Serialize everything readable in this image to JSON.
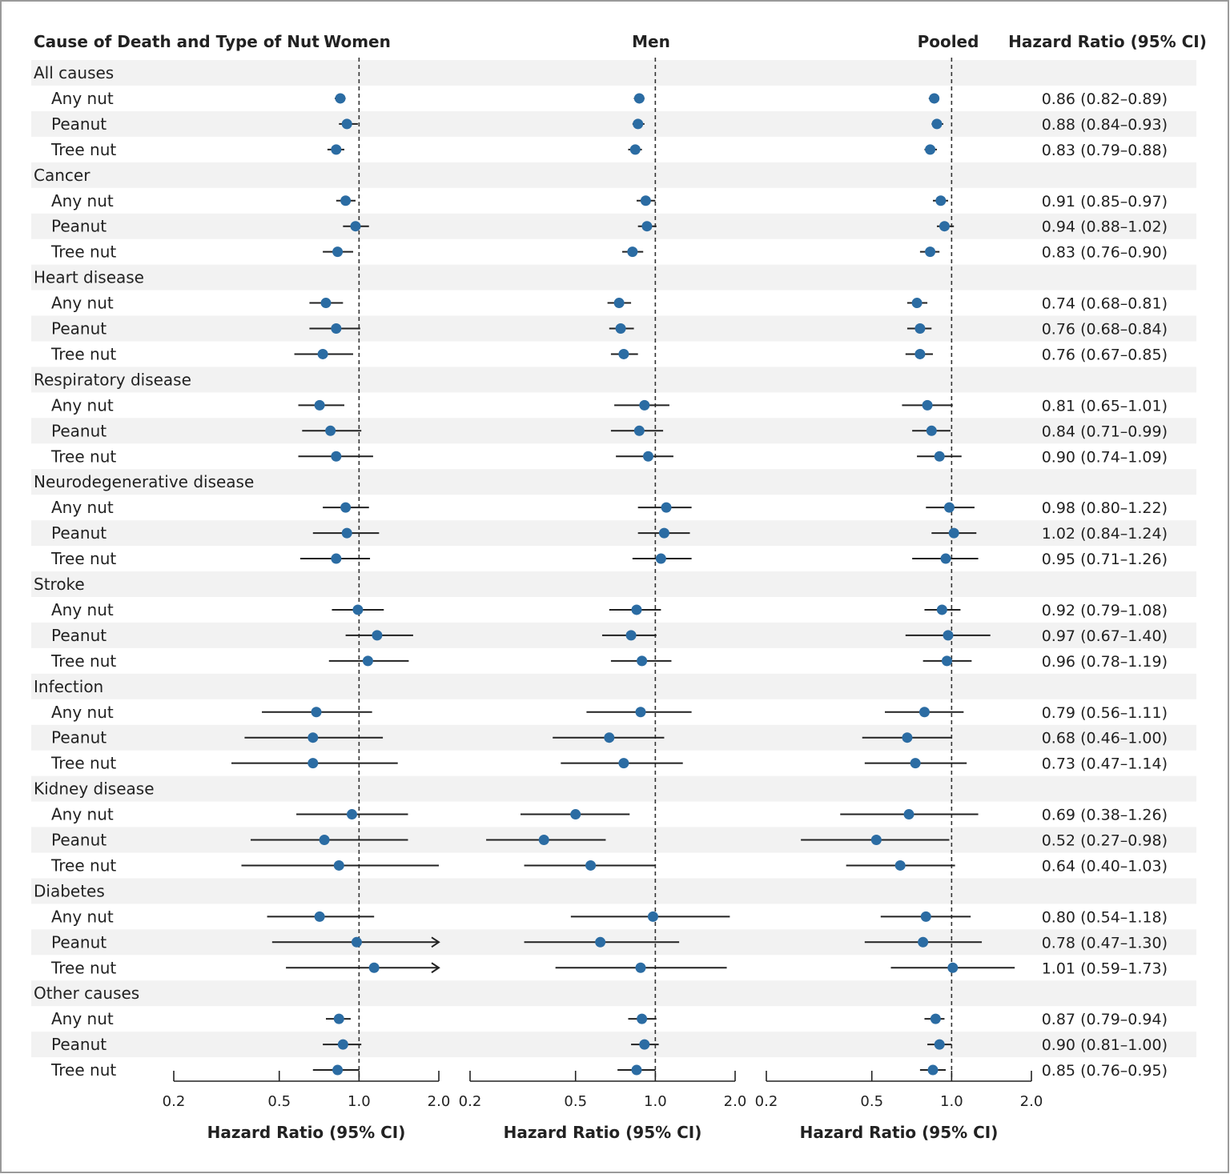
{
  "chart_data": {
    "type": "forest",
    "headers": {
      "category": "Cause of Death and Type of Nut",
      "women": "Women",
      "men": "Men",
      "pooled": "Pooled",
      "hr": "Hazard Ratio (95% CI)"
    },
    "panels": [
      {
        "key": "women",
        "xlabel": "Hazard Ratio (95% CI)"
      },
      {
        "key": "men",
        "xlabel": "Hazard Ratio (95% CI)"
      },
      {
        "key": "pooled",
        "xlabel": "Hazard Ratio (95% CI)"
      }
    ],
    "x_scale": "log",
    "xlim": [
      0.2,
      2.0
    ],
    "ticks": [
      0.2,
      0.5,
      1.0,
      2.0
    ],
    "tick_labels": [
      "0.2",
      "0.5",
      "1.0",
      "2.0"
    ],
    "reference_line": 1.0,
    "point_color": "#2b6ca3",
    "groups": [
      {
        "name": "All causes",
        "rows": [
          {
            "label": "Any nut",
            "women": [
              0.85,
              0.81,
              0.89
            ],
            "men": [
              0.87,
              0.83,
              0.91
            ],
            "pooled": [
              0.86,
              0.82,
              0.89
            ],
            "text": "0.86 (0.82–0.89)"
          },
          {
            "label": "Peanut",
            "women": [
              0.9,
              0.84,
              0.99
            ],
            "men": [
              0.86,
              0.82,
              0.91
            ],
            "pooled": [
              0.88,
              0.84,
              0.93
            ],
            "text": "0.88 (0.84–0.93)"
          },
          {
            "label": "Tree nut",
            "women": [
              0.82,
              0.76,
              0.88
            ],
            "men": [
              0.84,
              0.79,
              0.89
            ],
            "pooled": [
              0.83,
              0.79,
              0.88
            ],
            "text": "0.83 (0.79–0.88)"
          }
        ]
      },
      {
        "name": "Cancer",
        "rows": [
          {
            "label": "Any nut",
            "women": [
              0.89,
              0.82,
              0.97
            ],
            "men": [
              0.92,
              0.85,
              1.0
            ],
            "pooled": [
              0.91,
              0.85,
              0.97
            ],
            "text": "0.91 (0.85–0.97)"
          },
          {
            "label": "Peanut",
            "women": [
              0.97,
              0.87,
              1.09
            ],
            "men": [
              0.93,
              0.86,
              1.01
            ],
            "pooled": [
              0.94,
              0.88,
              1.02
            ],
            "text": "0.94 (0.88–1.02)"
          },
          {
            "label": "Tree nut",
            "women": [
              0.83,
              0.73,
              0.95
            ],
            "men": [
              0.82,
              0.75,
              0.9
            ],
            "pooled": [
              0.83,
              0.76,
              0.9
            ],
            "text": "0.83 (0.76–0.90)"
          }
        ]
      },
      {
        "name": "Heart disease",
        "rows": [
          {
            "label": "Any nut",
            "women": [
              0.75,
              0.65,
              0.87
            ],
            "men": [
              0.73,
              0.66,
              0.81
            ],
            "pooled": [
              0.74,
              0.68,
              0.81
            ],
            "text": "0.74 (0.68–0.81)"
          },
          {
            "label": "Peanut",
            "women": [
              0.82,
              0.65,
              1.01
            ],
            "men": [
              0.74,
              0.67,
              0.83
            ],
            "pooled": [
              0.76,
              0.68,
              0.84
            ],
            "text": "0.76 (0.68–0.84)"
          },
          {
            "label": "Tree nut",
            "women": [
              0.73,
              0.57,
              0.95
            ],
            "men": [
              0.76,
              0.68,
              0.86
            ],
            "pooled": [
              0.76,
              0.67,
              0.85
            ],
            "text": "0.76 (0.67–0.85)"
          }
        ]
      },
      {
        "name": "Respiratory disease",
        "rows": [
          {
            "label": "Any nut",
            "women": [
              0.71,
              0.59,
              0.88
            ],
            "men": [
              0.91,
              0.7,
              1.13
            ],
            "pooled": [
              0.81,
              0.65,
              1.01
            ],
            "text": "0.81 (0.65–1.01)"
          },
          {
            "label": "Peanut",
            "women": [
              0.78,
              0.61,
              1.02
            ],
            "men": [
              0.87,
              0.68,
              1.07
            ],
            "pooled": [
              0.84,
              0.71,
              0.99
            ],
            "text": "0.84 (0.71–0.99)"
          },
          {
            "label": "Tree nut",
            "women": [
              0.82,
              0.59,
              1.13
            ],
            "men": [
              0.94,
              0.71,
              1.17
            ],
            "pooled": [
              0.9,
              0.74,
              1.09
            ],
            "text": "0.90 (0.74–1.09)"
          }
        ]
      },
      {
        "name": "Neurodegenerative disease",
        "rows": [
          {
            "label": "Any nut",
            "women": [
              0.89,
              0.73,
              1.09
            ],
            "men": [
              1.1,
              0.86,
              1.37
            ],
            "pooled": [
              0.98,
              0.8,
              1.22
            ],
            "text": "0.98 (0.80–1.22)"
          },
          {
            "label": "Peanut",
            "women": [
              0.9,
              0.67,
              1.19
            ],
            "men": [
              1.08,
              0.86,
              1.35
            ],
            "pooled": [
              1.02,
              0.84,
              1.24
            ],
            "text": "1.02 (0.84–1.24)"
          },
          {
            "label": "Tree nut",
            "women": [
              0.82,
              0.6,
              1.1
            ],
            "men": [
              1.05,
              0.82,
              1.37
            ],
            "pooled": [
              0.95,
              0.71,
              1.26
            ],
            "text": "0.95 (0.71–1.26)"
          }
        ]
      },
      {
        "name": "Stroke",
        "rows": [
          {
            "label": "Any nut",
            "women": [
              0.99,
              0.79,
              1.24
            ],
            "men": [
              0.85,
              0.67,
              1.05
            ],
            "pooled": [
              0.92,
              0.79,
              1.08
            ],
            "text": "0.92 (0.79–1.08)"
          },
          {
            "label": "Peanut",
            "women": [
              1.17,
              0.89,
              1.6
            ],
            "men": [
              0.81,
              0.63,
              1.01
            ],
            "pooled": [
              0.97,
              0.67,
              1.4
            ],
            "text": "0.97 (0.67–1.40)"
          },
          {
            "label": "Tree nut",
            "women": [
              1.08,
              0.77,
              1.54
            ],
            "men": [
              0.89,
              0.68,
              1.15
            ],
            "pooled": [
              0.96,
              0.78,
              1.19
            ],
            "text": "0.96 (0.78–1.19)"
          }
        ]
      },
      {
        "name": "Infection",
        "rows": [
          {
            "label": "Any nut",
            "women": [
              0.69,
              0.43,
              1.12
            ],
            "men": [
              0.88,
              0.55,
              1.37
            ],
            "pooled": [
              0.79,
              0.56,
              1.11
            ],
            "text": "0.79 (0.56–1.11)"
          },
          {
            "label": "Peanut",
            "women": [
              0.67,
              0.37,
              1.23
            ],
            "men": [
              0.67,
              0.41,
              1.08
            ],
            "pooled": [
              0.68,
              0.46,
              1.0
            ],
            "text": "0.68 (0.46–1.00)"
          },
          {
            "label": "Tree nut",
            "women": [
              0.67,
              0.33,
              1.4
            ],
            "men": [
              0.76,
              0.44,
              1.27
            ],
            "pooled": [
              0.73,
              0.47,
              1.14
            ],
            "text": "0.73 (0.47–1.14)"
          }
        ]
      },
      {
        "name": "Kidney disease",
        "rows": [
          {
            "label": "Any nut",
            "women": [
              0.94,
              0.58,
              1.53
            ],
            "men": [
              0.5,
              0.31,
              0.8
            ],
            "pooled": [
              0.69,
              0.38,
              1.26
            ],
            "text": "0.69 (0.38–1.26)"
          },
          {
            "label": "Peanut",
            "women": [
              0.74,
              0.39,
              1.53
            ],
            "men": [
              0.38,
              0.23,
              0.65
            ],
            "pooled": [
              0.52,
              0.27,
              0.98
            ],
            "text": "0.52 (0.27–0.98)"
          },
          {
            "label": "Tree nut",
            "women": [
              0.84,
              0.36,
              2.0
            ],
            "men": [
              0.57,
              0.32,
              1.0
            ],
            "pooled": [
              0.64,
              0.4,
              1.03
            ],
            "text": "0.64 (0.40–1.03)"
          }
        ]
      },
      {
        "name": "Diabetes",
        "rows": [
          {
            "label": "Any nut",
            "women": [
              0.71,
              0.45,
              1.14
            ],
            "men": [
              0.98,
              0.48,
              1.91
            ],
            "pooled": [
              0.8,
              0.54,
              1.18
            ],
            "text": "0.80 (0.54–1.18)"
          },
          {
            "label": "Peanut",
            "women": [
              0.98,
              0.47,
              2.0
            ],
            "upper_arrow_women": true,
            "men": [
              0.62,
              0.32,
              1.23
            ],
            "pooled": [
              0.78,
              0.47,
              1.3
            ],
            "text": "0.78 (0.47–1.30)"
          },
          {
            "label": "Tree nut",
            "women": [
              1.14,
              0.53,
              2.0
            ],
            "upper_arrow_women": true,
            "men": [
              0.88,
              0.42,
              1.86
            ],
            "pooled": [
              1.01,
              0.59,
              1.73
            ],
            "text": "1.01 (0.59–1.73)"
          }
        ]
      },
      {
        "name": "Other causes",
        "rows": [
          {
            "label": "Any nut",
            "women": [
              0.84,
              0.75,
              0.93
            ],
            "men": [
              0.89,
              0.79,
              1.01
            ],
            "pooled": [
              0.87,
              0.79,
              0.94
            ],
            "text": "0.87 (0.79–0.94)"
          },
          {
            "label": "Peanut",
            "women": [
              0.87,
              0.73,
              1.02
            ],
            "men": [
              0.91,
              0.81,
              1.03
            ],
            "pooled": [
              0.9,
              0.81,
              1.0
            ],
            "text": "0.90 (0.81–1.00)"
          },
          {
            "label": "Tree nut",
            "women": [
              0.83,
              0.67,
              1.0
            ],
            "men": [
              0.85,
              0.72,
              1.0
            ],
            "pooled": [
              0.85,
              0.76,
              0.95
            ],
            "text": "0.85 (0.76–0.95)"
          }
        ]
      }
    ]
  }
}
